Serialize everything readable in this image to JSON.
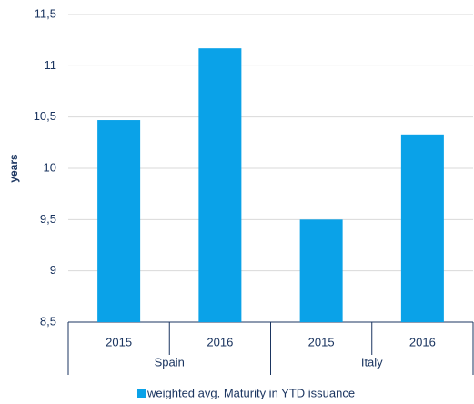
{
  "chart_data": {
    "type": "bar",
    "y_label": "years",
    "categories": [
      "2015",
      "2016",
      "2015",
      "2016"
    ],
    "groups": [
      "Spain",
      "Italy"
    ],
    "series": [
      {
        "name": "weighted avg. Maturity in YTD issuance",
        "color": "#0aa2e8",
        "values": [
          10.47,
          11.17,
          9.5,
          10.33
        ]
      }
    ],
    "ylim": [
      8.5,
      11.5
    ],
    "yticks": [
      {
        "value": 8.5,
        "label": "8,5"
      },
      9,
      {
        "value": 9.5,
        "label": "9,5"
      },
      10,
      {
        "value": 10.5,
        "label": "10,5"
      },
      11,
      {
        "value": 11.5,
        "label": "11,5"
      }
    ],
    "grid": true,
    "legend": "bottom"
  }
}
